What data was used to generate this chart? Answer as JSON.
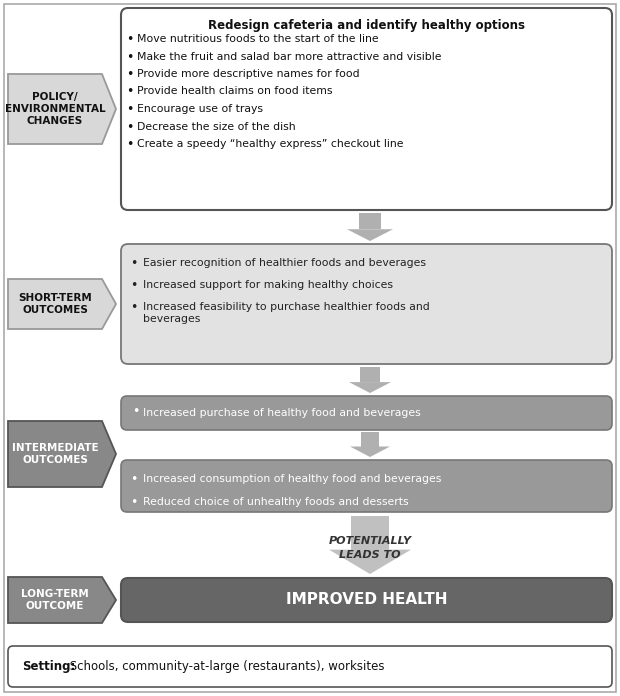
{
  "title": "Redesign cafeteria and identify healthy options",
  "box1_bullets": [
    "Move nutritious foods to the start of the line",
    "Make the fruit and salad bar more attractive and visible",
    "Provide more descriptive names for food",
    "Provide health claims on food items",
    "Encourage use of trays",
    "Decrease the size of the dish",
    "Create a speedy “healthy express” checkout line"
  ],
  "label1": "POLICY/\nENVIRONMENTAL\nCHANGES",
  "box2_bullets": [
    "Easier recognition of healthier foods and beverages",
    "Increased support for making healthy choices",
    "Increased feasibility to purchase healthier foods and\nbeverages"
  ],
  "label2": "SHORT-TERM\nOUTCOMES",
  "box3_text": "Increased purchase of healthy food and beverages",
  "box4_bullets": [
    "Increased consumption of healthy food and beverages",
    "Reduced choice of unhealthy foods and desserts"
  ],
  "label3": "INTERMEDIATE\nOUTCOMES",
  "arrow_label": "POTENTIALLY\nLEADS TO",
  "box5_text": "IMPROVED HEALTH",
  "label4": "LONG-TERM\nOUTCOME",
  "setting_bold": "Setting:",
  "setting_normal": " Schools, community-at-large (restaurants), worksites",
  "color_white_box": "#ffffff",
  "color_light_gray_box": "#e2e2e2",
  "color_med_gray_box": "#999999",
  "color_dark_gray_box": "#666666",
  "color_arrow_small": "#b0b0b0",
  "color_arrow_big": "#c0c0c0",
  "color_label_light_bg": "#d8d8d8",
  "color_label_dark_bg": "#888888",
  "color_label_border_light": "#999999",
  "color_label_border_dark": "#555555",
  "color_box_border_dark": "#555555",
  "color_box_border_med": "#777777"
}
